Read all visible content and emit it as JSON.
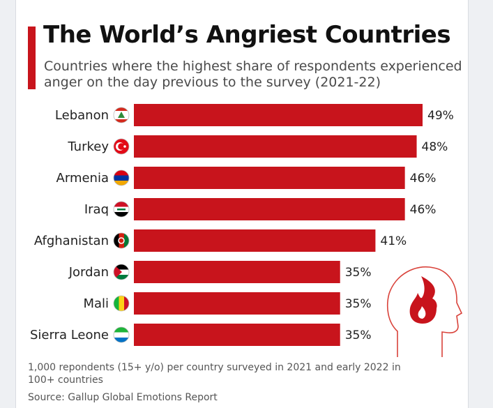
{
  "title": "The World’s Angriest Countries",
  "subtitle": "Countries where the highest share of respondents experienced anger on the day previous to the survey (2021-22)",
  "footnote": "1,000 repondents (15+ y/o) per country surveyed in 2021 and early 2022 in 100+ countries",
  "source": "Source: Gallup Global Emotions Report",
  "colors": {
    "bar": "#c8141c",
    "accent": "#c8141c",
    "illustration": "#d9423a"
  },
  "chart_data": {
    "type": "bar",
    "orientation": "horizontal",
    "categories": [
      "Lebanon",
      "Turkey",
      "Armenia",
      "Iraq",
      "Afghanistan",
      "Jordan",
      "Mali",
      "Sierra Leone"
    ],
    "values": [
      49,
      48,
      46,
      46,
      41,
      35,
      35,
      35
    ],
    "value_labels": [
      "49%",
      "48%",
      "46%",
      "46%",
      "41%",
      "35%",
      "35%",
      "35%"
    ],
    "unit": "%",
    "flag_icons": [
      "lebanon-flag-icon",
      "turkey-flag-icon",
      "armenia-flag-icon",
      "iraq-flag-icon",
      "afghanistan-flag-icon",
      "jordan-flag-icon",
      "mali-flag-icon",
      "sierra-leone-flag-icon"
    ],
    "xlim": [
      0,
      49
    ],
    "grid": false,
    "legend": "none",
    "illustration": "angry-head-flame-icon"
  }
}
